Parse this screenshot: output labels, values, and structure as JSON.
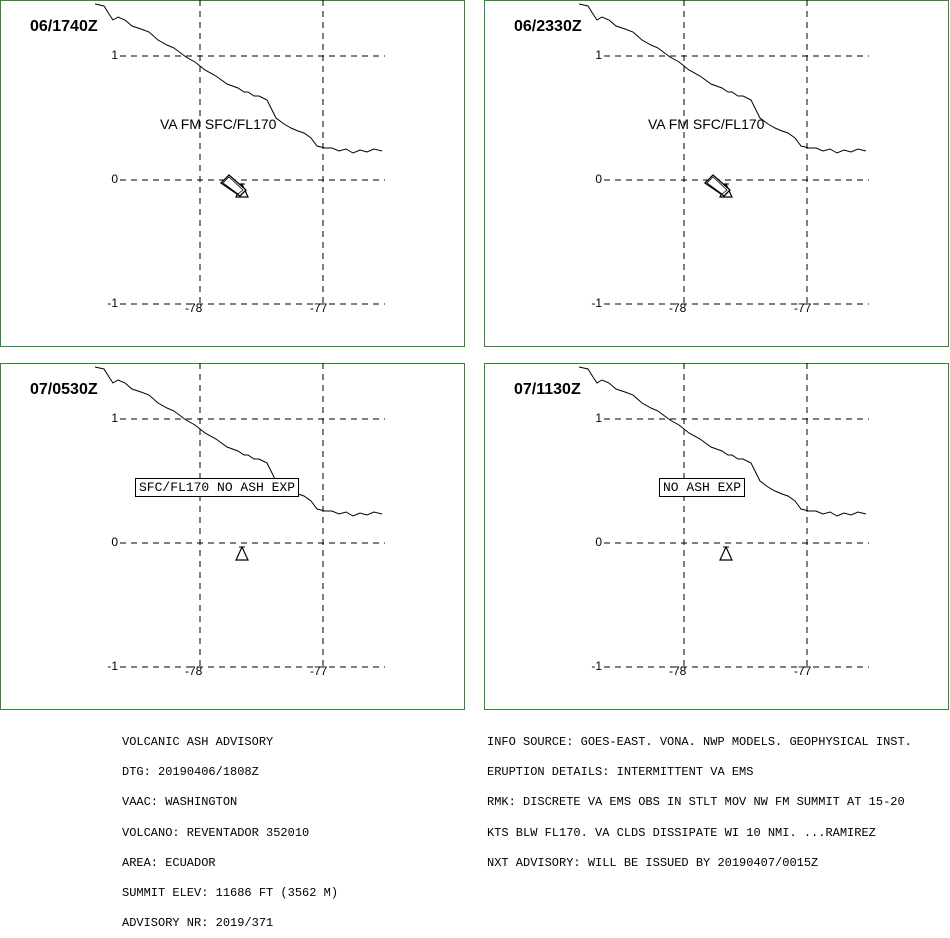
{
  "panels": [
    {
      "time": "06/1740Z",
      "y_ticks": [
        "1",
        "0",
        "-1"
      ],
      "x_ticks": [
        "-78",
        "-77"
      ],
      "va_label": "VA FM SFC/FL170",
      "va_boxed": false,
      "ash_plume": true
    },
    {
      "time": "06/2330Z",
      "y_ticks": [
        "1",
        "0",
        "-1"
      ],
      "x_ticks": [
        "-78",
        "-77"
      ],
      "va_label": "VA FM SFC/FL170",
      "va_boxed": false,
      "ash_plume": true
    },
    {
      "time": "07/0530Z",
      "y_ticks": [
        "1",
        "0",
        "-1"
      ],
      "x_ticks": [
        "-78",
        "-77"
      ],
      "va_label": "SFC/FL170 NO ASH EXP",
      "va_boxed": true,
      "ash_plume": false
    },
    {
      "time": "07/1130Z",
      "y_ticks": [
        "1",
        "0",
        "-1"
      ],
      "x_ticks": [
        "-78",
        "-77"
      ],
      "va_label": "NO ASH EXP",
      "va_boxed": true,
      "ash_plume": false
    }
  ],
  "advisory_left": [
    "VOLCANIC ASH ADVISORY",
    "DTG: 20190406/1808Z",
    "VAAC: WASHINGTON",
    "VOLCANO: REVENTADOR 352010",
    "AREA: ECUADOR",
    "SUMMIT ELEV: 11686 FT (3562 M)",
    "ADVISORY NR: 2019/371"
  ],
  "advisory_right": [
    "INFO SOURCE: GOES-EAST. VONA. NWP MODELS. GEOPHYSICAL INST.",
    "ERUPTION DETAILS: INTERMITTENT VA EMS",
    "RMK: DISCRETE VA EMS OBS IN STLT MOV NW FM SUMMIT AT 15-20",
    "KTS BLW FL170. VA CLDS DISSIPATE WI 10 NMI. ...RAMIREZ",
    "NXT ADVISORY: WILL BE ISSUED BY 20190407/0015Z"
  ],
  "colors": {
    "frame": "#2e8b2e",
    "ink": "#000000"
  }
}
